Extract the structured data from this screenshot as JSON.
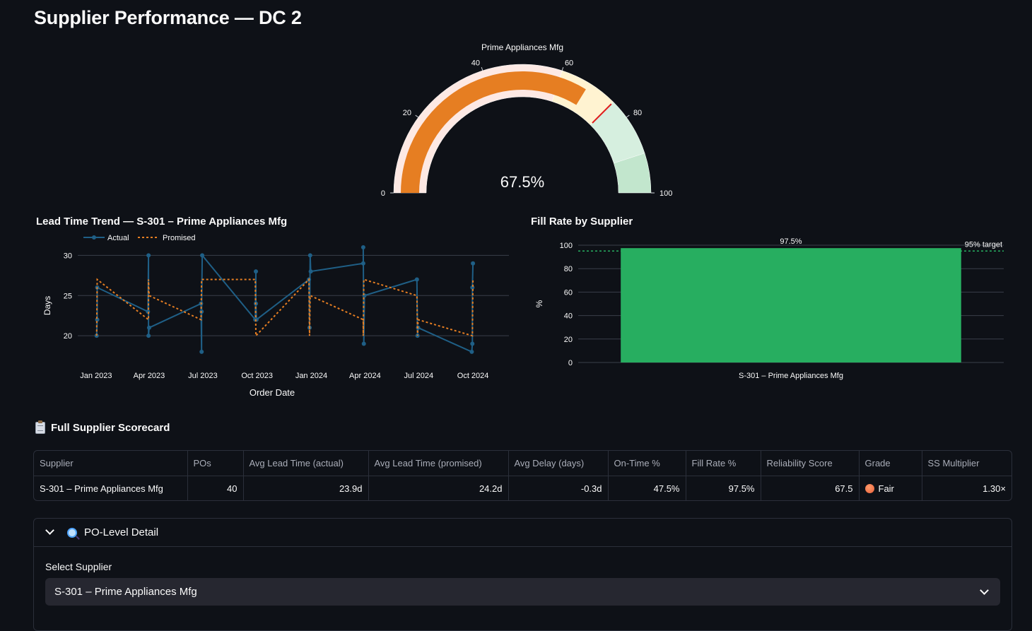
{
  "page": {
    "title": "Supplier Performance — DC 2"
  },
  "gauge": {
    "title": "Prime Appliances Mfg",
    "value": 67.5,
    "value_label": "67.5%",
    "min": 0,
    "max": 100,
    "threshold": 75,
    "ticks": [
      "0",
      "20",
      "40",
      "60",
      "80",
      "100"
    ],
    "steps": [
      {
        "from": 0,
        "to": 60,
        "color": "#fde9e4"
      },
      {
        "from": 60,
        "to": 75,
        "color": "#fff3d1"
      },
      {
        "from": 75,
        "to": 90,
        "color": "#d6efdf"
      },
      {
        "from": 90,
        "to": 100,
        "color": "#c2e6cd"
      }
    ],
    "bar_color": "#e67e22",
    "threshold_color": "#e01e1e"
  },
  "chart_data": [
    {
      "type": "line",
      "title": "Lead Time Trend — S-301 – Prime Appliances Mfg",
      "xlabel": "Order Date",
      "ylabel": "Days",
      "x_ticks": [
        "Jan 2023",
        "Apr 2023",
        "Jul 2023",
        "Oct 2023",
        "Jan 2024",
        "Apr 2024",
        "Jul 2024",
        "Oct 2024"
      ],
      "y_ticks": [
        "20",
        "25",
        "30"
      ],
      "ylim": [
        16.5,
        31
      ],
      "grid": true,
      "legend_position": "top-left",
      "series": [
        {
          "name": "Actual",
          "color": "#1f5f86",
          "style": "solid",
          "points": [
            {
              "x": "2023-01-02",
              "y": 20
            },
            {
              "x": "2023-01-03",
              "y": 22
            },
            {
              "x": "2023-01-03",
              "y": 26
            },
            {
              "x": "2023-03-30",
              "y": 23
            },
            {
              "x": "2023-03-31",
              "y": 30
            },
            {
              "x": "2023-03-31",
              "y": 20
            },
            {
              "x": "2023-04-01",
              "y": 21
            },
            {
              "x": "2023-06-28",
              "y": 24
            },
            {
              "x": "2023-06-29",
              "y": 18
            },
            {
              "x": "2023-06-29",
              "y": 23
            },
            {
              "x": "2023-06-30",
              "y": 30
            },
            {
              "x": "2023-09-28",
              "y": 22
            },
            {
              "x": "2023-09-29",
              "y": 28
            },
            {
              "x": "2023-09-29",
              "y": 24
            },
            {
              "x": "2023-09-30",
              "y": 22
            },
            {
              "x": "2023-12-28",
              "y": 27
            },
            {
              "x": "2023-12-29",
              "y": 21
            },
            {
              "x": "2023-12-30",
              "y": 30
            },
            {
              "x": "2023-12-31",
              "y": 28
            },
            {
              "x": "2024-03-29",
              "y": 29
            },
            {
              "x": "2024-03-29",
              "y": 31
            },
            {
              "x": "2024-03-30",
              "y": 19
            },
            {
              "x": "2024-03-31",
              "y": 25
            },
            {
              "x": "2024-06-28",
              "y": 27
            },
            {
              "x": "2024-06-29",
              "y": 20
            },
            {
              "x": "2024-06-30",
              "y": 21
            },
            {
              "x": "2024-09-29",
              "y": 18
            },
            {
              "x": "2024-09-30",
              "y": 19
            },
            {
              "x": "2024-09-30",
              "y": 26
            },
            {
              "x": "2024-10-01",
              "y": 29
            }
          ]
        },
        {
          "name": "Promised",
          "color": "#e67e22",
          "style": "dotted",
          "points": [
            {
              "x": "2023-01-02",
              "y": 20
            },
            {
              "x": "2023-01-03",
              "y": 27
            },
            {
              "x": "2023-03-31",
              "y": 22
            },
            {
              "x": "2023-03-31",
              "y": 27
            },
            {
              "x": "2023-04-01",
              "y": 25
            },
            {
              "x": "2023-06-28",
              "y": 22
            },
            {
              "x": "2023-06-29",
              "y": 27
            },
            {
              "x": "2023-09-28",
              "y": 27
            },
            {
              "x": "2023-09-29",
              "y": 20
            },
            {
              "x": "2023-12-28",
              "y": 27
            },
            {
              "x": "2023-12-29",
              "y": 20
            },
            {
              "x": "2023-12-30",
              "y": 25
            },
            {
              "x": "2024-03-29",
              "y": 22
            },
            {
              "x": "2024-03-29",
              "y": 20
            },
            {
              "x": "2024-03-30",
              "y": 27
            },
            {
              "x": "2024-06-28",
              "y": 25
            },
            {
              "x": "2024-06-29",
              "y": 20
            },
            {
              "x": "2024-06-30",
              "y": 22
            },
            {
              "x": "2024-09-30",
              "y": 20
            },
            {
              "x": "2024-10-01",
              "y": 27
            }
          ]
        }
      ]
    },
    {
      "type": "bar",
      "title": "Fill Rate by Supplier",
      "ylabel": "%",
      "categories": [
        "S-301 – Prime Appliances Mfg"
      ],
      "values": [
        97.5
      ],
      "data_labels": [
        "97.5%"
      ],
      "ylim": [
        0,
        100
      ],
      "y_ticks": [
        "0",
        "20",
        "40",
        "60",
        "80",
        "100"
      ],
      "bar_color": "#27ae60",
      "target": {
        "value": 95,
        "label": "95% target",
        "color": "#27ae60"
      },
      "grid": true
    }
  ],
  "scorecard": {
    "title": "Full Supplier Scorecard",
    "icon": "clipboard-icon",
    "columns": [
      "Supplier",
      "POs",
      "Avg Lead Time (actual)",
      "Avg Lead Time (promised)",
      "Avg Delay (days)",
      "On-Time %",
      "Fill Rate %",
      "Reliability Score",
      "Grade",
      "SS Multiplier"
    ],
    "row": {
      "supplier": "S-301 – Prime Appliances Mfg",
      "pos": "40",
      "avg_lead_actual": "23.9d",
      "avg_lead_promised": "24.2d",
      "avg_delay": "-0.3d",
      "on_time": "47.5%",
      "fill_rate": "97.5%",
      "reliability": "67.5",
      "grade": "Fair",
      "ss_multiplier": "1.30×"
    }
  },
  "po_detail": {
    "title": "PO-Level Detail",
    "icon": "magnifier-icon",
    "select_label": "Select Supplier",
    "select_value": "S-301 – Prime Appliances Mfg"
  }
}
